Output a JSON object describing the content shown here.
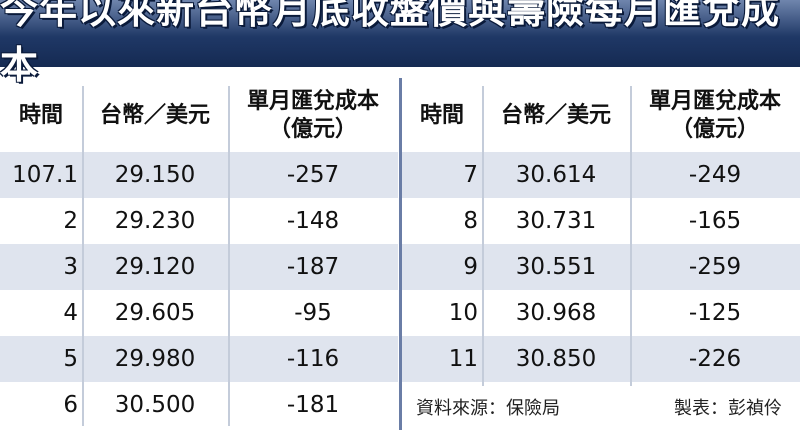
{
  "title": "今年以來新台幣月底收盤價與壽險每月匯兌成本",
  "headers": {
    "time": "時間",
    "rate": "台幣／美元",
    "cost_line1": "單月匯兌成本",
    "cost_line2": "（億元）"
  },
  "left_rows": [
    {
      "time": "107.1",
      "rate": "29.150",
      "cost": "-257"
    },
    {
      "time": "2",
      "rate": "29.230",
      "cost": "-148"
    },
    {
      "time": "3",
      "rate": "29.120",
      "cost": "-187"
    },
    {
      "time": "4",
      "rate": "29.605",
      "cost": "-95"
    },
    {
      "time": "5",
      "rate": "29.980",
      "cost": "-116"
    },
    {
      "time": "6",
      "rate": "30.500",
      "cost": "-181"
    }
  ],
  "right_rows": [
    {
      "time": "7",
      "rate": "30.614",
      "cost": "-249"
    },
    {
      "time": "8",
      "rate": "30.731",
      "cost": "-165"
    },
    {
      "time": "9",
      "rate": "30.551",
      "cost": "-259"
    },
    {
      "time": "10",
      "rate": "30.968",
      "cost": "-125"
    },
    {
      "time": "11",
      "rate": "30.850",
      "cost": "-226"
    }
  ],
  "footer": {
    "source": "資料來源：保險局",
    "author": "製表：彭禎伶"
  },
  "colors": {
    "title_bg": "#1f3866",
    "row_shade": "#dfe4ee",
    "divider": "#6a7da6"
  }
}
